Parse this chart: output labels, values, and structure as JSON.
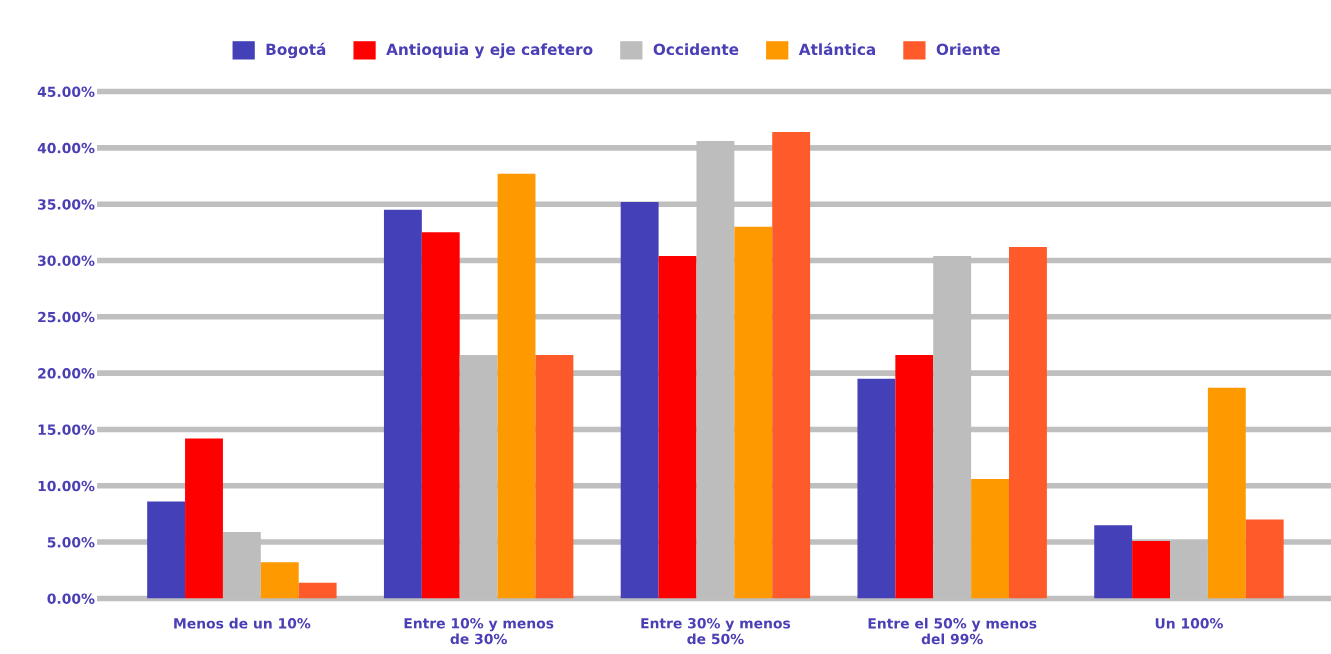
{
  "chart_data": {
    "type": "bar",
    "categories": [
      "Menos de un 10%",
      "Entre 10% y menos\nde 30%",
      "Entre 30% y menos\nde 50%",
      "Entre el 50% y menos\ndel 99%",
      "Un 100%"
    ],
    "series": [
      {
        "name": "Bogotá",
        "color": "#4340b8",
        "values": [
          8.6,
          34.5,
          35.2,
          19.5,
          6.5
        ]
      },
      {
        "name": "Antioquia y eje cafetero",
        "color": "#ff0000",
        "values": [
          14.2,
          32.5,
          30.4,
          21.6,
          5.1
        ]
      },
      {
        "name": "Occidente",
        "color": "#bdbdbd",
        "values": [
          5.9,
          21.6,
          40.6,
          30.4,
          5.1
        ]
      },
      {
        "name": "Atlántica",
        "color": "#ff9900",
        "values": [
          3.2,
          37.7,
          33.0,
          10.6,
          18.7
        ]
      },
      {
        "name": "Oriente",
        "color": "#ff5a2a",
        "values": [
          1.4,
          21.6,
          41.4,
          31.2,
          7.0
        ]
      }
    ],
    "ylim": [
      0,
      45
    ],
    "yticks": [
      {
        "value": 0,
        "label": "0.00%"
      },
      {
        "value": 5,
        "label": "5.00%"
      },
      {
        "value": 10,
        "label": "10.00%"
      },
      {
        "value": 15,
        "label": "15.00%"
      },
      {
        "value": 20,
        "label": "20.00%"
      },
      {
        "value": 25,
        "label": "25.00%"
      },
      {
        "value": 30,
        "label": "30.00%"
      },
      {
        "value": 35,
        "label": "35.00%"
      },
      {
        "value": 40,
        "label": "40.00%"
      },
      {
        "value": 45,
        "label": "45.00%"
      }
    ],
    "grid": "y",
    "legend": "top"
  }
}
